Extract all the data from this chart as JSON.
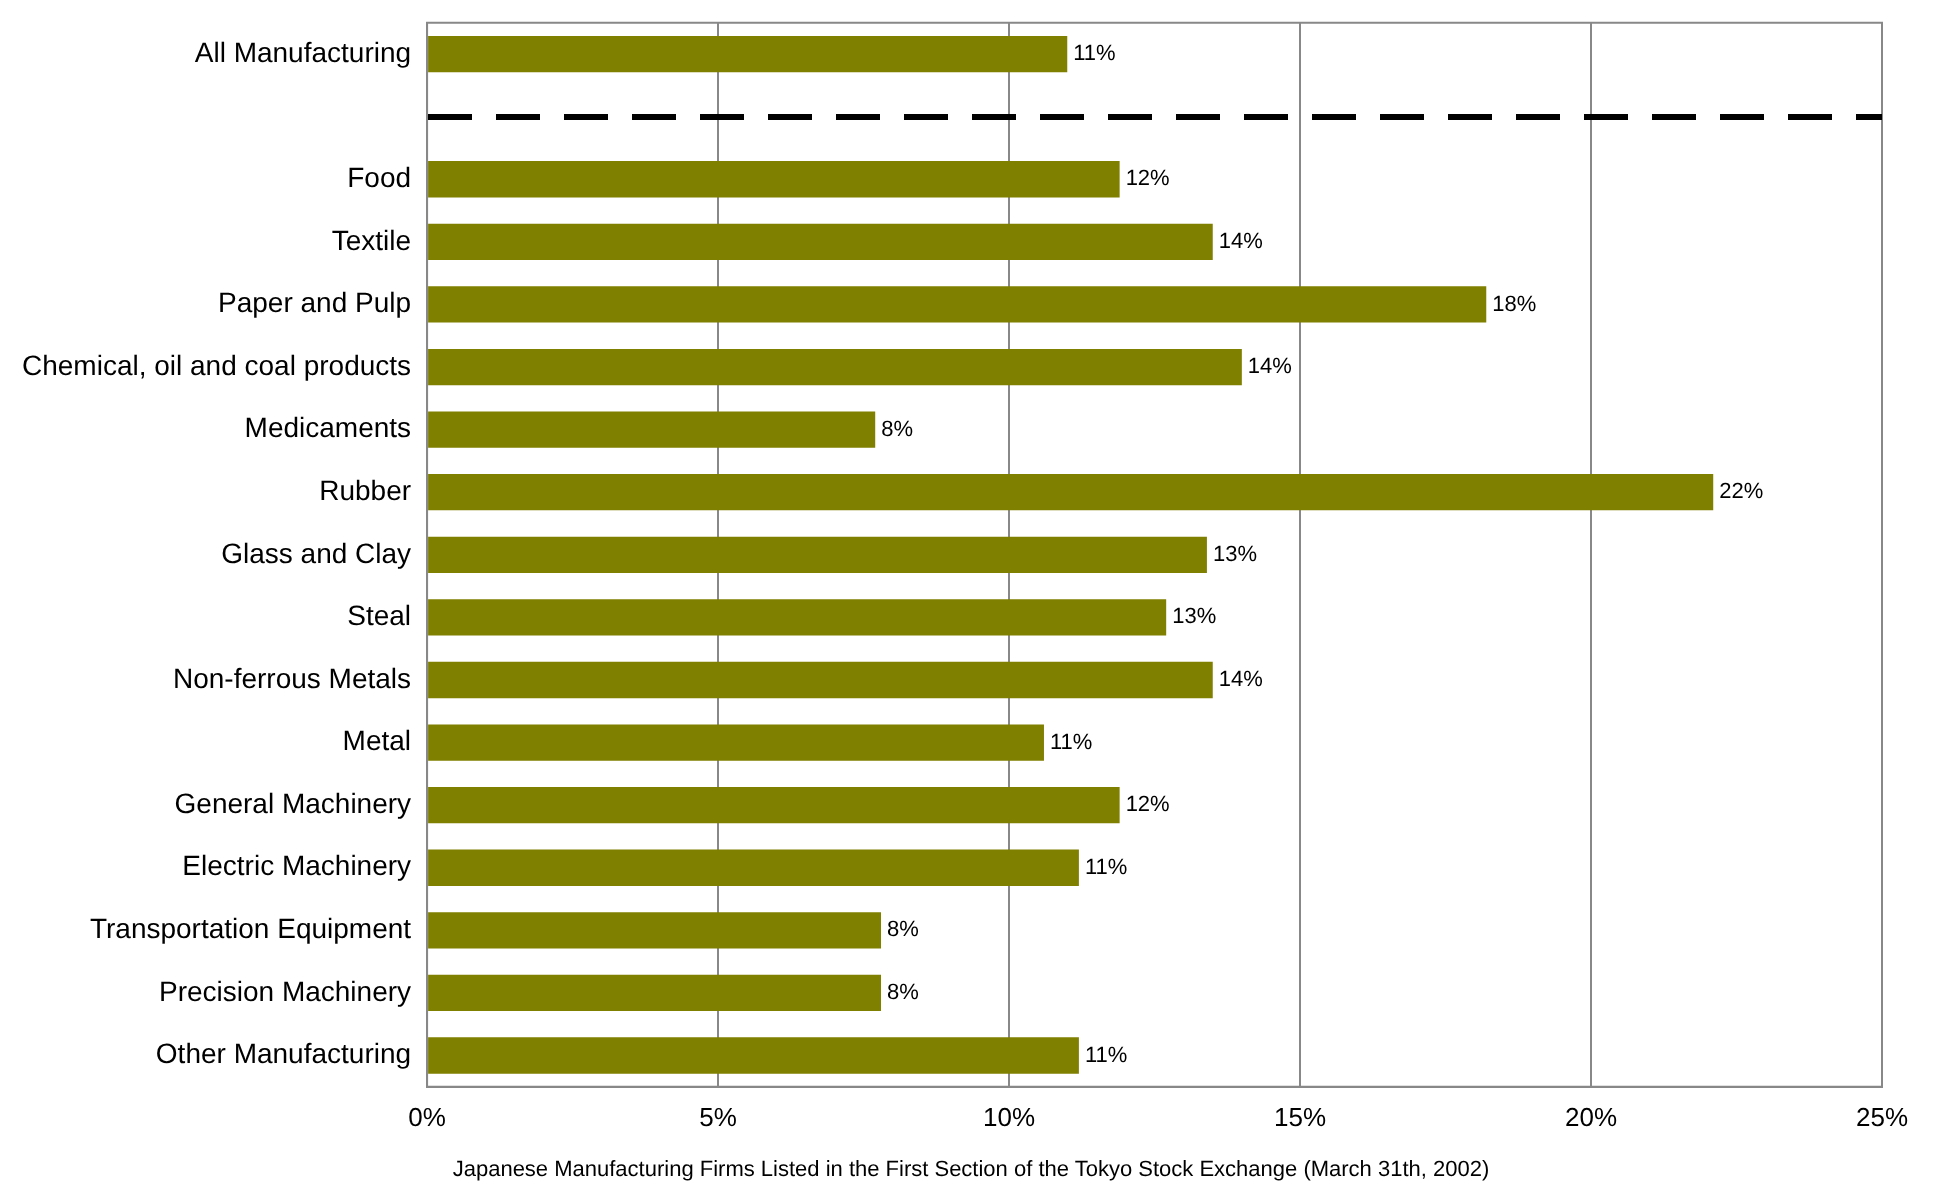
{
  "chart_data": {
    "type": "bar",
    "orientation": "horizontal",
    "categories": [
      "All Manufacturing",
      null,
      "Food",
      "Textile",
      "Paper and Pulp",
      "Chemical, oil and coal products",
      "Medicaments",
      "Rubber",
      "Glass and Clay",
      "Steal",
      "Non-ferrous Metals",
      "Metal",
      "General Machinery",
      "Electric Machinery",
      "Transportation Equipment",
      "Precision Machinery",
      "Other Manufacturing"
    ],
    "values": [
      11.0,
      null,
      11.9,
      13.5,
      18.2,
      14.0,
      7.7,
      22.1,
      13.4,
      12.7,
      13.5,
      10.6,
      11.9,
      11.2,
      7.8,
      7.8,
      11.2
    ],
    "value_labels": [
      "11%",
      null,
      "12%",
      "14%",
      "18%",
      "14%",
      "8%",
      "22%",
      "13%",
      "13%",
      "14%",
      "11%",
      "12%",
      "11%",
      "8%",
      "8%",
      "11%"
    ],
    "color": "#7f7f00",
    "xlim": [
      0,
      25
    ],
    "xticks": [
      {
        "value": 0,
        "label": "0%"
      },
      {
        "value": 5,
        "label": "5%"
      },
      {
        "value": 10,
        "label": "10%"
      },
      {
        "value": 15,
        "label": "15%"
      },
      {
        "value": 20,
        "label": "20%"
      },
      {
        "value": 25,
        "label": "25%"
      }
    ],
    "grid": "x",
    "legend": false,
    "annotations": [
      "Japanese Manufacturing Firms Listed in the First Section of the Tokyo Stock Exchange (March 31th, 2002)"
    ]
  }
}
